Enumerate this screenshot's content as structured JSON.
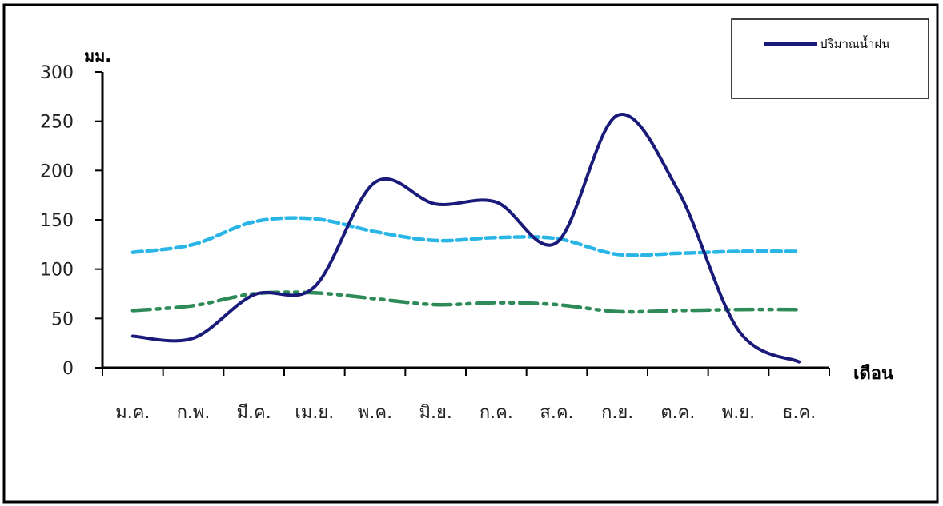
{
  "chart_data": {
    "type": "line",
    "y_unit": "มม.",
    "x_unit": "เดือน",
    "ylim": [
      0,
      300
    ],
    "y_ticks": [
      0,
      50,
      100,
      150,
      200,
      250,
      300
    ],
    "categories": [
      "ม.ค.",
      "ก.พ.",
      "มี.ค.",
      "เม.ย.",
      "พ.ค.",
      "มิ.ย.",
      "ก.ค.",
      "ส.ค.",
      "ก.ย.",
      "ต.ค.",
      "พ.ย.",
      "ธ.ค."
    ],
    "series": [
      {
        "name": "ปริมาณน้ำฝน",
        "color": "#1a1a7a",
        "dash": "solid",
        "values": [
          32,
          30,
          74,
          82,
          188,
          166,
          168,
          127,
          256,
          180,
          38,
          6
        ]
      },
      {
        "color": "#29b6e6",
        "dash": "dashed",
        "values": [
          117,
          125,
          148,
          151,
          138,
          129,
          132,
          131,
          115,
          116,
          118,
          118
        ]
      },
      {
        "color": "#2e8b57",
        "dash": "dash-dot-dot",
        "values": [
          58,
          63,
          75,
          76,
          70,
          64,
          66,
          64,
          57,
          58,
          59,
          59
        ]
      }
    ],
    "legend_position": "top-right",
    "grid": false
  }
}
